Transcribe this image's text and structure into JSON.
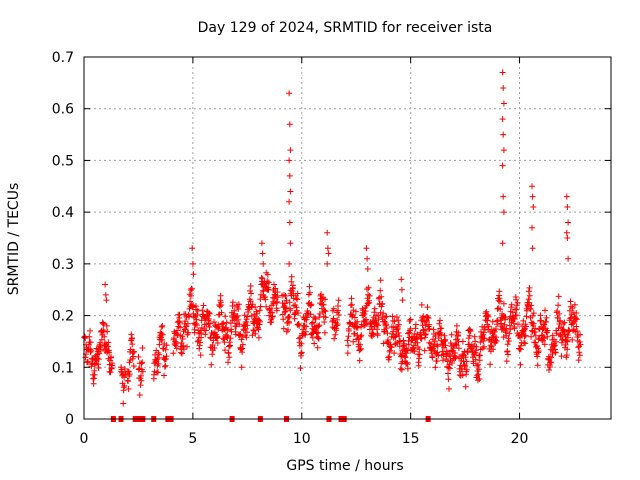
{
  "chart_data": {
    "type": "scatter",
    "title": "Day 129 of 2024, SRMTID for receiver ista",
    "xlabel": "GPS time / hours",
    "ylabel": "SRMTID / TECUs",
    "xlim": [
      0,
      24.2
    ],
    "ylim": [
      0,
      0.7
    ],
    "x_ticks": [
      0,
      5,
      10,
      15,
      20
    ],
    "x_tick_labels": [
      "0",
      "5",
      "10",
      "15",
      "20"
    ],
    "y_ticks": [
      0,
      0.1,
      0.2,
      0.3,
      0.4,
      0.5,
      0.6,
      0.7
    ],
    "y_tick_labels": [
      "0",
      "0.1",
      "0.2",
      "0.3",
      "0.4",
      "0.5",
      "0.6",
      "0.7"
    ],
    "grid": true,
    "marker": "+",
    "series_color": "#ff0000",
    "baseline": [
      [
        0.0,
        0.12
      ],
      [
        0.5,
        0.12
      ],
      [
        1.0,
        0.15
      ],
      [
        1.5,
        0.12
      ],
      [
        2.0,
        0.09
      ],
      [
        2.5,
        0.11
      ],
      [
        3.0,
        0.11
      ],
      [
        3.5,
        0.12
      ],
      [
        4.0,
        0.12
      ],
      [
        4.5,
        0.17
      ],
      [
        5.0,
        0.2
      ],
      [
        5.5,
        0.17
      ],
      [
        6.0,
        0.17
      ],
      [
        6.5,
        0.17
      ],
      [
        7.0,
        0.17
      ],
      [
        7.5,
        0.18
      ],
      [
        8.0,
        0.21
      ],
      [
        8.5,
        0.24
      ],
      [
        9.0,
        0.22
      ],
      [
        9.5,
        0.22
      ],
      [
        10.0,
        0.17
      ],
      [
        10.5,
        0.19
      ],
      [
        11.0,
        0.19
      ],
      [
        11.5,
        0.18
      ],
      [
        12.0,
        0.16
      ],
      [
        12.5,
        0.17
      ],
      [
        13.0,
        0.19
      ],
      [
        13.5,
        0.2
      ],
      [
        14.0,
        0.16
      ],
      [
        14.5,
        0.14
      ],
      [
        15.0,
        0.13
      ],
      [
        15.5,
        0.17
      ],
      [
        16.0,
        0.15
      ],
      [
        16.5,
        0.13
      ],
      [
        17.0,
        0.12
      ],
      [
        17.5,
        0.12
      ],
      [
        18.0,
        0.12
      ],
      [
        18.5,
        0.16
      ],
      [
        19.0,
        0.18
      ],
      [
        19.5,
        0.18
      ],
      [
        20.0,
        0.17
      ],
      [
        20.5,
        0.19
      ],
      [
        21.0,
        0.15
      ],
      [
        21.5,
        0.14
      ],
      [
        22.0,
        0.17
      ],
      [
        22.5,
        0.17
      ],
      [
        22.8,
        0.17
      ]
    ],
    "segments": [
      [
        0.0,
        1.3
      ],
      [
        1.7,
        1.9
      ],
      [
        2.0,
        2.3
      ],
      [
        2.5,
        2.7
      ],
      [
        3.2,
        3.8
      ],
      [
        4.1,
        8.9
      ],
      [
        9.1,
        11.1
      ],
      [
        11.4,
        11.7
      ],
      [
        12.1,
        22.8
      ]
    ],
    "spikes": [
      {
        "x": 9.45,
        "values": [
          0.63,
          0.57,
          0.52,
          0.5,
          0.47,
          0.44,
          0.42,
          0.38,
          0.34,
          0.3
        ]
      },
      {
        "x": 19.25,
        "values": [
          0.67,
          0.64,
          0.61,
          0.58,
          0.55,
          0.52,
          0.49,
          0.43,
          0.4,
          0.34
        ]
      },
      {
        "x": 20.6,
        "values": [
          0.45,
          0.43,
          0.41,
          0.37,
          0.33
        ]
      },
      {
        "x": 22.2,
        "values": [
          0.43,
          0.41,
          0.38,
          0.36,
          0.35,
          0.31
        ]
      },
      {
        "x": 11.2,
        "values": [
          0.36,
          0.33,
          0.32,
          0.3
        ]
      },
      {
        "x": 13.0,
        "values": [
          0.33,
          0.31,
          0.29
        ]
      },
      {
        "x": 14.6,
        "values": [
          0.27,
          0.25,
          0.23
        ]
      },
      {
        "x": 1.0,
        "values": [
          0.26,
          0.24,
          0.23
        ]
      },
      {
        "x": 8.2,
        "values": [
          0.34,
          0.32,
          0.3
        ]
      },
      {
        "x": 5.0,
        "values": [
          0.33,
          0.3,
          0.28
        ]
      }
    ],
    "zero_markers_x": [
      1.35,
      1.7,
      2.35,
      2.45,
      2.6,
      2.7,
      3.2,
      3.85,
      4.0,
      6.8,
      8.1,
      9.3,
      11.25,
      11.8,
      11.95,
      15.8
    ]
  }
}
